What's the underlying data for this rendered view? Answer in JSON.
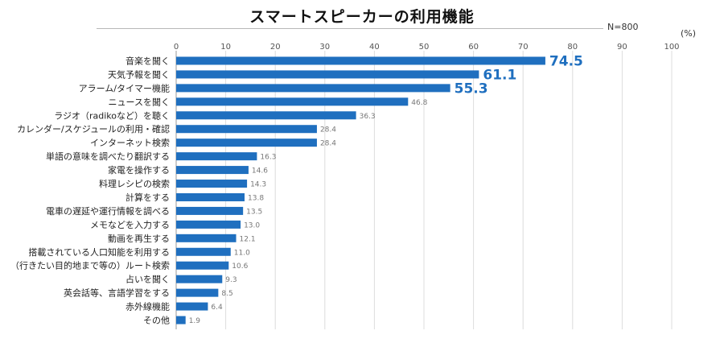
{
  "chart_data": {
    "type": "bar",
    "orientation": "horizontal",
    "title": "スマートスピーカーの利用機能",
    "sample_note": "N=800",
    "unit": "(%)",
    "xlim": [
      0,
      100
    ],
    "xticks": [
      "0",
      "10",
      "20",
      "30",
      "40",
      "50",
      "60",
      "70",
      "80",
      "90",
      "100"
    ],
    "grid": true,
    "bar_color": "#1f6fbf",
    "highlight_label_color": "#1f6fbf",
    "highlight_top_n": 3,
    "categories": [
      "音楽を聞く",
      "天気予報を聞く",
      "アラーム/タイマー機能",
      "ニュースを聞く",
      "ラジオ（radikoなど）を聴く",
      "カレンダー/スケジュールの利用・確認",
      "インターネット検索",
      "単語の意味を調べたり翻訳する",
      "家電を操作する",
      "料理レシピの検索",
      "計算をする",
      "電車の遅延や運行情報を調べる",
      "メモなどを入力する",
      "動画を再生する",
      "搭載されている人口知能を利用する",
      "（行きたい目的地まで等の）ルート検索",
      "占いを聞く",
      "英会話等、言語学習をする",
      "赤外線機能",
      "その他"
    ],
    "values": [
      74.5,
      61.1,
      55.3,
      46.8,
      36.3,
      28.4,
      28.4,
      16.3,
      14.6,
      14.3,
      13.8,
      13.5,
      13.0,
      12.1,
      11.0,
      10.6,
      9.3,
      8.5,
      6.4,
      1.9
    ],
    "value_labels": [
      "74.5",
      "61.1",
      "55.3",
      "46.8",
      "36.3",
      "28.4",
      "28.4",
      "16.3",
      "14.6",
      "14.3",
      "13.8",
      "13.5",
      "13.0",
      "12.1",
      "11.0",
      "10.6",
      "9.3",
      "8.5",
      "6.4",
      "1.9"
    ]
  }
}
